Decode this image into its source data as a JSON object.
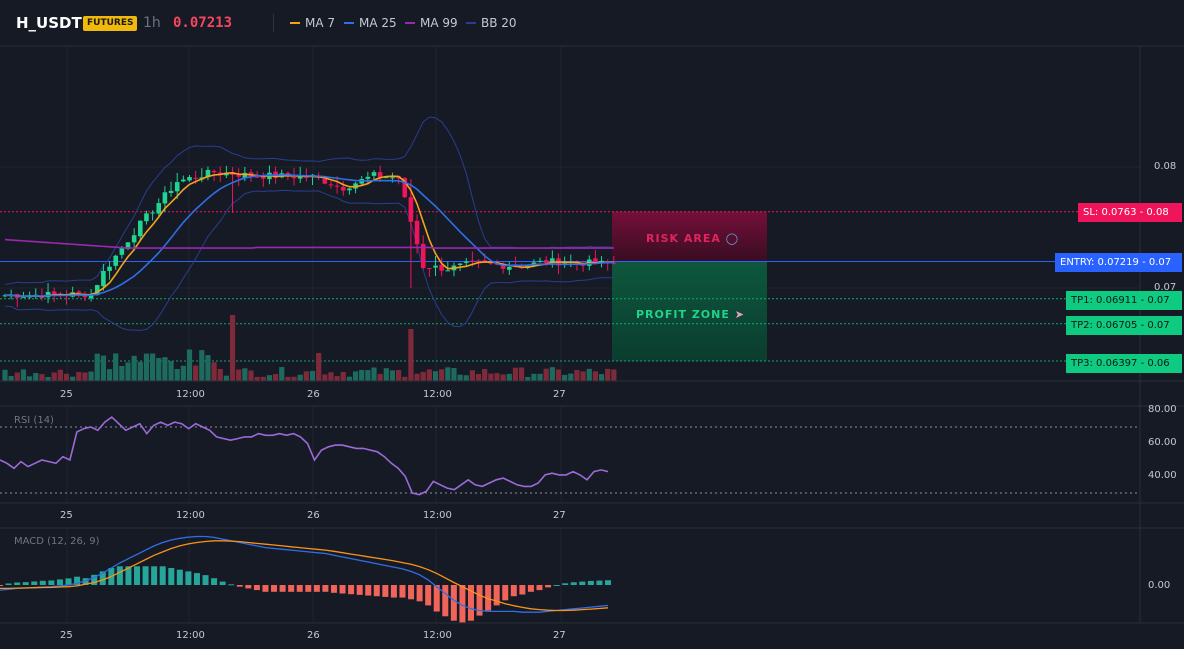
{
  "header": {
    "symbol": "H_USDT",
    "badge": "FUTURES",
    "timeframe": "1h",
    "last_price": "0.07213",
    "last_price_color": "#f6465d",
    "legend": [
      {
        "label": "MA 7",
        "color": "#f7a21b"
      },
      {
        "label": "MA 25",
        "color": "#2f6fe8"
      },
      {
        "label": "MA 99",
        "color": "#9c27b0"
      },
      {
        "label": "BB 20",
        "color": "#2a3d8f"
      }
    ]
  },
  "main_pane": {
    "y_ticks": [
      "0.08",
      "0.07"
    ],
    "risk_label": "RISK AREA",
    "profit_label": "PROFIT ZONE",
    "risk_icon": "shield-icon",
    "profit_icon": "rocket-icon",
    "levels": {
      "sl": {
        "label": "SL: 0.0763 - 0.08",
        "value": 0.0763,
        "color": "#f0145a"
      },
      "entry": {
        "label": "ENTRY: 0.07219 - 0.07",
        "value": 0.07219,
        "color": "#2962ff"
      },
      "tp1": {
        "label": "TP1: 0.06911 - 0.07",
        "value": 0.06911,
        "color": "#0ecb81"
      },
      "tp2": {
        "label": "TP2: 0.06705 - 0.07",
        "value": 0.06705,
        "color": "#0ecb81"
      },
      "tp3": {
        "label": "TP3: 0.06397 - 0.06",
        "value": 0.06397,
        "color": "#0ecb81"
      }
    }
  },
  "time_axis": [
    "25",
    "12:00",
    "26",
    "12:00",
    "27"
  ],
  "rsi": {
    "title": "RSI (14)",
    "y_ticks": [
      "80.00",
      "60.00",
      "40.00"
    ],
    "values": [
      50,
      48,
      45,
      49,
      46,
      48,
      50,
      49,
      48,
      52,
      50,
      67,
      69,
      70,
      68,
      73,
      76,
      72,
      68,
      70,
      72,
      66,
      71,
      73,
      71,
      73,
      72,
      69,
      72,
      70,
      68,
      64,
      63,
      62,
      63,
      64,
      64,
      66,
      65,
      65,
      66,
      65,
      66,
      64,
      60,
      50,
      56,
      58,
      59,
      59,
      58,
      57,
      57,
      56,
      55,
      52,
      48,
      45,
      40,
      30,
      29,
      31,
      37,
      35,
      33,
      32,
      35,
      38,
      35,
      34,
      36,
      38,
      39,
      37,
      35,
      34,
      34,
      36,
      41,
      42,
      41,
      41,
      43,
      41,
      38,
      43,
      44,
      43
    ]
  },
  "macd": {
    "title": "MACD (12, 26, 9)",
    "y_ticks": [
      "0.00"
    ],
    "macd_line": [
      -0.3,
      -0.25,
      -0.2,
      -0.18,
      -0.15,
      -0.12,
      -0.1,
      -0.05,
      0.0,
      0.1,
      0.25,
      0.45,
      0.7,
      1.0,
      1.3,
      1.55,
      1.8,
      2.05,
      2.3,
      2.5,
      2.65,
      2.75,
      2.82,
      2.85,
      2.85,
      2.8,
      2.7,
      2.6,
      2.5,
      2.4,
      2.3,
      2.2,
      2.15,
      2.1,
      2.05,
      2.0,
      1.95,
      1.9,
      1.85,
      1.75,
      1.65,
      1.55,
      1.45,
      1.35,
      1.25,
      1.15,
      1.05,
      0.95,
      0.8,
      0.6,
      0.3,
      -0.1,
      -0.5,
      -0.9,
      -1.2,
      -1.4,
      -1.5,
      -1.55,
      -1.55,
      -1.55,
      -1.55,
      -1.6,
      -1.6,
      -1.6,
      -1.55,
      -1.5,
      -1.45,
      -1.4,
      -1.35,
      -1.3,
      -1.25,
      -1.2
    ],
    "signal_line": [
      -0.2,
      -0.2,
      -0.18,
      -0.17,
      -0.16,
      -0.15,
      -0.14,
      -0.12,
      -0.1,
      -0.05,
      0.05,
      0.15,
      0.3,
      0.5,
      0.75,
      1.0,
      1.25,
      1.5,
      1.75,
      1.95,
      2.15,
      2.3,
      2.42,
      2.5,
      2.56,
      2.6,
      2.6,
      2.58,
      2.55,
      2.5,
      2.45,
      2.4,
      2.35,
      2.3,
      2.25,
      2.2,
      2.15,
      2.1,
      2.05,
      1.98,
      1.9,
      1.82,
      1.74,
      1.66,
      1.58,
      1.5,
      1.42,
      1.32,
      1.22,
      1.08,
      0.9,
      0.68,
      0.42,
      0.15,
      -0.1,
      -0.35,
      -0.6,
      -0.8,
      -0.95,
      -1.1,
      -1.22,
      -1.32,
      -1.4,
      -1.45,
      -1.48,
      -1.5,
      -1.5,
      -1.48,
      -1.45,
      -1.42,
      -1.38,
      -1.34
    ]
  }
}
